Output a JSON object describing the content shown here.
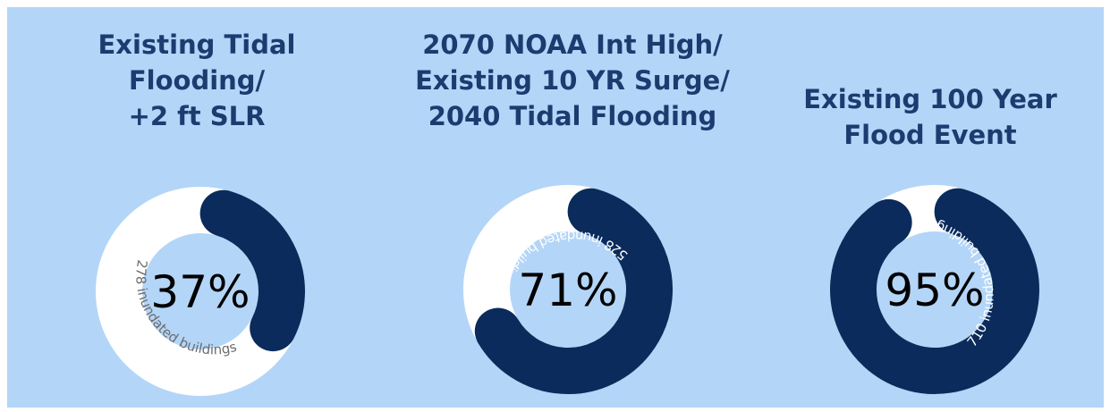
{
  "colors": {
    "background": "#b3d5f8",
    "filled": "#0a2b5b",
    "remaining": "#ffffff",
    "title": "#1c3c70",
    "label_on_light": "#6d6d6d",
    "label_on_dark": "#ffffff"
  },
  "chart_data": [
    {
      "type": "pie",
      "title_lines": [
        "Existing Tidal",
        "Flooding/",
        "+2 ft SLR"
      ],
      "percent": 37,
      "percent_label": "37%",
      "count_label": "278 inundated buildings"
    },
    {
      "type": "pie",
      "title_lines": [
        "2070 NOAA Int High/",
        "Existing 10 YR Surge/",
        "2040 Tidal Flooding"
      ],
      "percent": 71,
      "percent_label": "71%",
      "count_label": "528 inundated buildings"
    },
    {
      "type": "pie",
      "title_lines": [
        "Existing 100 Year",
        "Flood Event"
      ],
      "percent": 95,
      "percent_label": "95%",
      "count_label": "710 inundated buildings"
    }
  ]
}
